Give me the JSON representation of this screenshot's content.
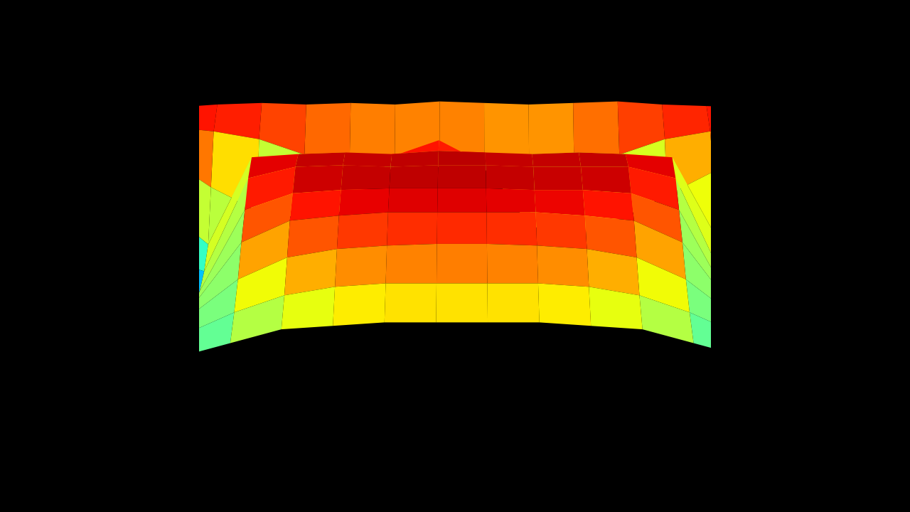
{
  "chart_data": {
    "type": "surface",
    "tick_labels": false,
    "zlim": [
      0,
      1
    ],
    "z": [
      [
        0.9,
        0.92,
        0.93,
        0.92,
        0.93,
        0.92,
        0.94,
        0.93,
        0.92,
        0.93,
        0.94,
        0.92,
        0.91,
        0.9
      ],
      [
        0.88,
        0.85,
        0.8,
        0.7,
        0.65,
        0.6,
        0.62,
        0.6,
        0.55,
        0.6,
        0.7,
        0.8,
        0.85,
        0.88
      ],
      [
        0.8,
        0.6,
        0.45,
        0.4,
        0.45,
        0.8,
        0.9,
        0.75,
        0.35,
        0.3,
        0.4,
        0.55,
        0.7,
        0.8
      ],
      [
        0.6,
        0.35,
        0.9,
        0.92,
        0.93,
        0.92,
        0.94,
        0.93,
        0.92,
        0.93,
        0.92,
        0.9,
        0.4,
        0.55
      ],
      [
        0.4,
        0.3,
        0.88,
        0.95,
        0.96,
        0.95,
        0.96,
        0.96,
        0.95,
        0.95,
        0.95,
        0.88,
        0.3,
        0.35
      ],
      [
        0.25,
        0.3,
        0.8,
        0.9,
        0.92,
        0.93,
        0.93,
        0.93,
        0.92,
        0.92,
        0.9,
        0.8,
        0.3,
        0.2
      ],
      [
        0.2,
        0.35,
        0.72,
        0.85,
        0.88,
        0.9,
        0.9,
        0.9,
        0.9,
        0.88,
        0.85,
        0.72,
        0.35,
        0.2
      ],
      [
        0.3,
        0.4,
        0.62,
        0.75,
        0.8,
        0.82,
        0.83,
        0.83,
        0.82,
        0.8,
        0.75,
        0.62,
        0.4,
        0.3
      ],
      [
        0.35,
        0.42,
        0.55,
        0.65,
        0.7,
        0.72,
        0.72,
        0.72,
        0.72,
        0.7,
        0.65,
        0.55,
        0.42,
        0.35
      ],
      [
        0.38,
        0.42,
        0.5,
        0.58,
        0.6,
        0.62,
        0.62,
        0.62,
        0.62,
        0.6,
        0.58,
        0.5,
        0.42,
        0.38
      ]
    ]
  }
}
